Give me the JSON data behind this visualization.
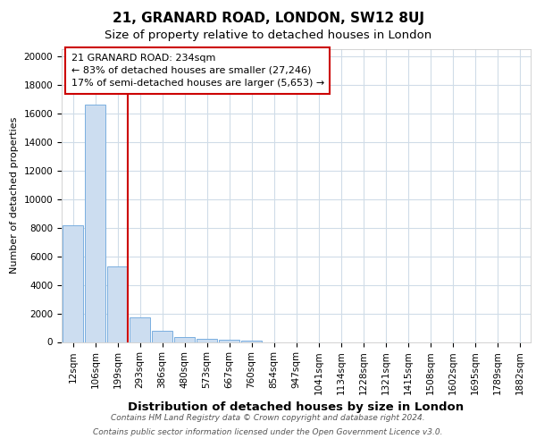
{
  "title1": "21, GRANARD ROAD, LONDON, SW12 8UJ",
  "title2": "Size of property relative to detached houses in London",
  "xlabel": "Distribution of detached houses by size in London",
  "ylabel": "Number of detached properties",
  "annotation_title": "21 GRANARD ROAD: 234sqm",
  "annotation_line1": "← 83% of detached houses are smaller (27,246)",
  "annotation_line2": "17% of semi-detached houses are larger (5,653) →",
  "footer1": "Contains HM Land Registry data © Crown copyright and database right 2024.",
  "footer2": "Contains public sector information licensed under the Open Government Licence v3.0.",
  "bar_labels": [
    "12sqm",
    "106sqm",
    "199sqm",
    "293sqm",
    "386sqm",
    "480sqm",
    "573sqm",
    "667sqm",
    "760sqm",
    "854sqm",
    "947sqm",
    "1041sqm",
    "1134sqm",
    "1228sqm",
    "1321sqm",
    "1415sqm",
    "1508sqm",
    "1602sqm",
    "1695sqm",
    "1789sqm",
    "1882sqm"
  ],
  "bar_heights": [
    8200,
    16600,
    5300,
    1750,
    800,
    350,
    230,
    140,
    90,
    0,
    0,
    0,
    0,
    0,
    0,
    0,
    0,
    0,
    0,
    0,
    0
  ],
  "bar_color": "#ccddf0",
  "bar_edge_color": "#7aafe0",
  "red_line_index": 2,
  "red_line_color": "#cc0000",
  "background_color": "#ffffff",
  "plot_bg_color": "#ffffff",
  "annotation_box_edge": "#cc0000",
  "annotation_box_face": "#ffffff",
  "grid_color": "#d0dce8",
  "ylim": [
    0,
    20500
  ],
  "yticks": [
    0,
    2000,
    4000,
    6000,
    8000,
    10000,
    12000,
    14000,
    16000,
    18000,
    20000
  ],
  "title1_fontsize": 11,
  "title2_fontsize": 9.5,
  "xlabel_fontsize": 9.5,
  "ylabel_fontsize": 8,
  "tick_fontsize": 7.5,
  "annotation_fontsize": 8,
  "footer_fontsize": 6.5
}
